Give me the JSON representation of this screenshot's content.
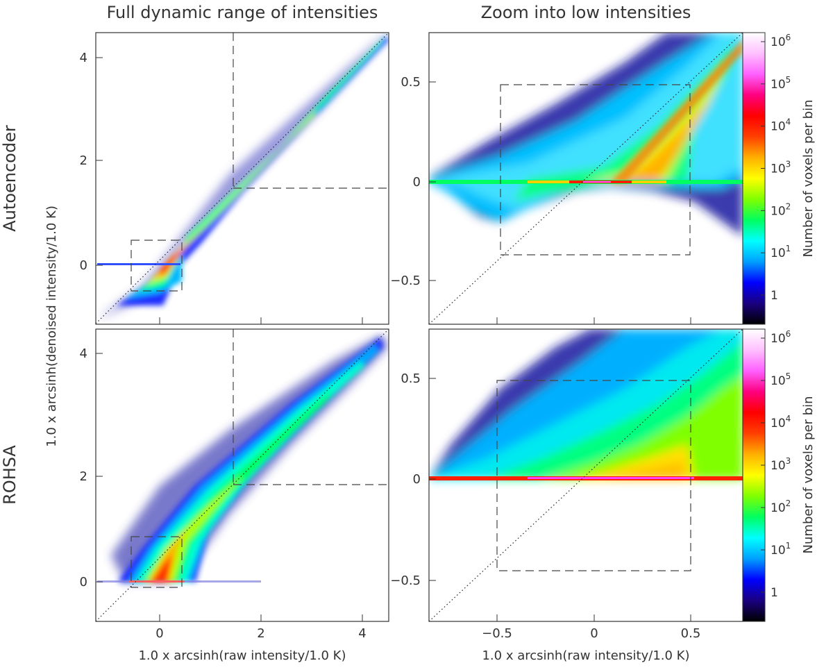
{
  "figure": {
    "col_titles": [
      "Full dynamic range of intensities",
      "Zoom into low intensities"
    ],
    "row_labels": [
      "Autoencoder",
      "ROHSA"
    ],
    "left_ylabel": "1.0 x arcsinh(denoised intensity/1.0 K)",
    "xlabel": "1.0 x arcsinh(raw intensity/1.0 K)",
    "colorbar_label": "Number of voxels per bin",
    "colorbar_ticks": [
      {
        "base": "10",
        "exp": "6",
        "value": 1000000
      },
      {
        "base": "10",
        "exp": "5",
        "value": 100000
      },
      {
        "base": "10",
        "exp": "4",
        "value": 10000
      },
      {
        "base": "10",
        "exp": "3",
        "value": 1000
      },
      {
        "base": "10",
        "exp": "2",
        "value": 100
      },
      {
        "base": "10",
        "exp": "1",
        "value": 10
      },
      {
        "base": "1",
        "exp": "",
        "value": 1
      }
    ],
    "colormap": [
      "#000000",
      "#1a0080",
      "#0000ff",
      "#00a0ff",
      "#00ffff",
      "#00ff60",
      "#80ff00",
      "#ffff00",
      "#ffb000",
      "#ff4000",
      "#ff0000",
      "#ff0080",
      "#ff60ff",
      "#ffc0ff",
      "#ffffff"
    ]
  },
  "chart_data": [
    {
      "id": "autoencoder-full",
      "type": "heatmap",
      "title": "Full dynamic range of intensities",
      "row": "Autoencoder",
      "xlabel": "",
      "ylabel": "1.0 x arcsinh(denoised intensity/1.0 K)",
      "xlim": [
        -1.2,
        4.5
      ],
      "ylim": [
        -1.2,
        4.5
      ],
      "xticks": [
        0,
        2,
        4
      ],
      "yticks": [
        0,
        2,
        4
      ],
      "xtick_labels": [],
      "ytick_labels": [
        "0",
        "2",
        "4"
      ],
      "identity_line": true,
      "zoom_box": {
        "x": [
          -0.5,
          0.5
        ],
        "y": [
          -0.5,
          0.5
        ]
      },
      "dashed_guides": {
        "x": 1.45,
        "y": 1.45
      },
      "bin_count_range": [
        1,
        1000000
      ],
      "colorscale": "log"
    },
    {
      "id": "autoencoder-zoom",
      "type": "heatmap",
      "title": "Zoom into low intensities",
      "row": "Autoencoder",
      "xlabel": "",
      "ylabel": "",
      "xlim": [
        -0.75,
        0.75
      ],
      "ylim": [
        -0.75,
        0.75
      ],
      "xticks": [
        -0.5,
        0,
        0.5
      ],
      "yticks": [
        -0.5,
        0,
        0.5
      ],
      "xtick_labels": [],
      "ytick_labels": [
        "−0.5",
        "0",
        "0.5"
      ],
      "identity_line": true,
      "zoom_box": {
        "x": [
          -0.48,
          0.48
        ],
        "y": [
          -0.48,
          0.48
        ]
      },
      "bin_count_range": [
        1,
        1000000
      ],
      "colorscale": "log"
    },
    {
      "id": "rohsa-full",
      "type": "heatmap",
      "title": "",
      "row": "ROHSA",
      "xlabel": "1.0 x arcsinh(raw intensity/1.0 K)",
      "ylabel": "1.0 x arcsinh(denoised intensity/1.0 K)",
      "xlim": [
        -1.2,
        4.5
      ],
      "ylim": [
        -1.2,
        4.5
      ],
      "xticks": [
        0,
        2,
        4
      ],
      "yticks": [
        0,
        2,
        4
      ],
      "xtick_labels": [
        "0",
        "2",
        "4"
      ],
      "ytick_labels": [
        "0",
        "2",
        "4"
      ],
      "identity_line": true,
      "zoom_box": {
        "x": [
          -0.5,
          0.5
        ],
        "y": [
          -0.5,
          0.5
        ]
      },
      "dashed_guides": {
        "x": 1.45,
        "y": 1.45
      },
      "bin_count_range": [
        1,
        1000000
      ],
      "colorscale": "log"
    },
    {
      "id": "rohsa-zoom",
      "type": "heatmap",
      "title": "",
      "row": "ROHSA",
      "xlabel": "1.0 x arcsinh(raw intensity/1.0 K)",
      "ylabel": "",
      "xlim": [
        -0.75,
        0.75
      ],
      "ylim": [
        -0.75,
        0.75
      ],
      "xticks": [
        -0.5,
        0,
        0.5
      ],
      "yticks": [
        -0.5,
        0,
        0.5
      ],
      "xtick_labels": [
        "−0.5",
        "0",
        "0.5"
      ],
      "ytick_labels": [
        "−0.5",
        "0",
        "0.5"
      ],
      "identity_line": true,
      "zoom_box": {
        "x": [
          -0.48,
          0.48
        ],
        "y": [
          -0.48,
          0.48
        ]
      },
      "bin_count_range": [
        1,
        1000000
      ],
      "colorscale": "log"
    }
  ]
}
